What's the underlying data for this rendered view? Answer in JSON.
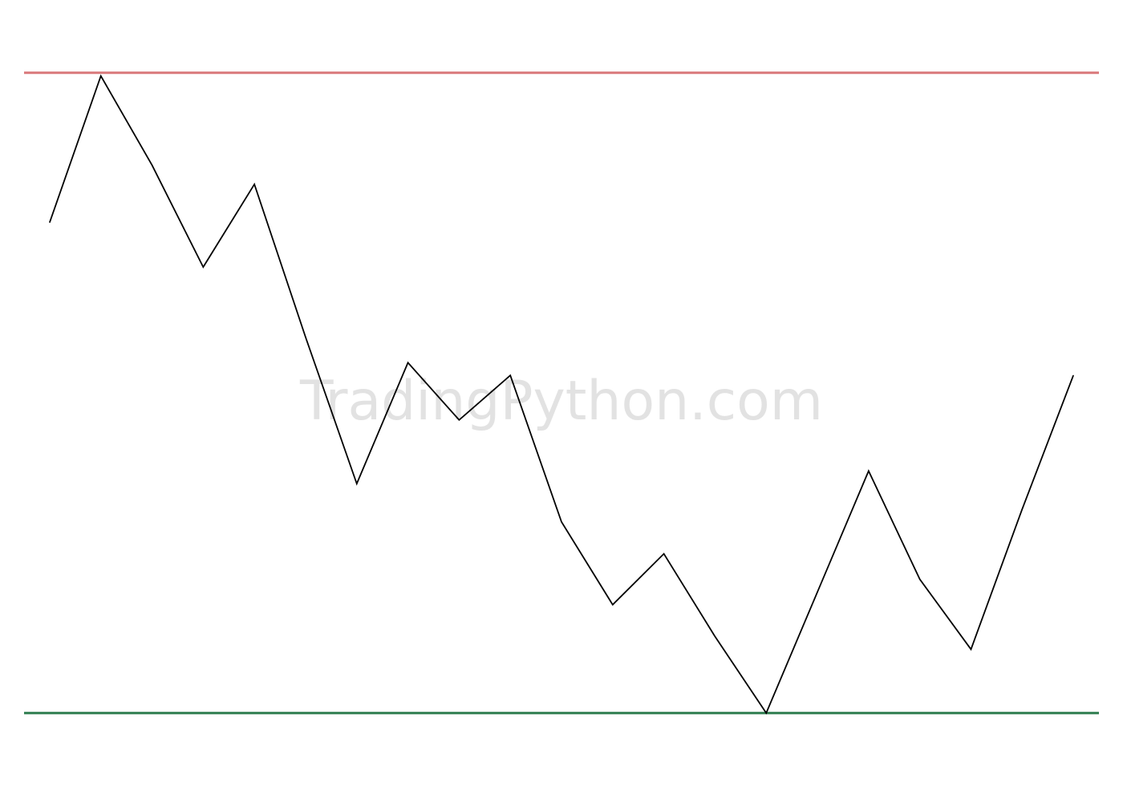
{
  "watermark": "TradingPython.com",
  "chart_data": {
    "type": "line",
    "title": "",
    "xlabel": "",
    "ylabel": "",
    "grid": false,
    "legend": "none",
    "ylim": [
      -5,
      105
    ],
    "xlim": [
      -0.5,
      20.5
    ],
    "x": [
      0,
      1,
      2,
      3,
      4,
      5,
      6,
      7,
      8,
      9,
      10,
      11,
      12,
      13,
      14,
      15,
      16,
      17,
      18,
      19,
      20
    ],
    "series": [
      {
        "values": [
          77,
          100,
          86,
          70,
          83,
          59,
          36,
          55,
          46,
          53,
          30,
          17,
          25,
          12,
          0,
          19,
          38,
          21,
          10,
          32,
          53
        ]
      }
    ],
    "horizontal_lines": [
      {
        "y": 100.5,
        "color": "#d9787a"
      },
      {
        "y": 0,
        "color": "#2e7d4f"
      }
    ],
    "colors": {
      "line": "#000000",
      "background": "#ffffff",
      "watermark": "#e2e2e2"
    }
  }
}
